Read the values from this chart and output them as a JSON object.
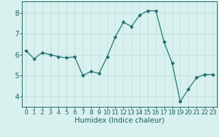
{
  "x": [
    0,
    1,
    2,
    3,
    4,
    5,
    6,
    7,
    8,
    9,
    10,
    11,
    12,
    13,
    14,
    15,
    16,
    17,
    18,
    19,
    20,
    21,
    22,
    23
  ],
  "y": [
    6.2,
    5.8,
    6.1,
    6.0,
    5.9,
    5.85,
    5.9,
    5.0,
    5.2,
    5.1,
    5.9,
    6.85,
    7.55,
    7.35,
    7.9,
    8.1,
    8.1,
    6.6,
    5.6,
    3.75,
    4.35,
    4.9,
    5.05,
    5.05
  ],
  "line_color": "#1a7070",
  "marker": "D",
  "marker_size": 2.5,
  "xlabel": "Humidex (Indice chaleur)",
  "xlim": [
    -0.5,
    23.5
  ],
  "ylim": [
    3.5,
    8.55
  ],
  "yticks": [
    4,
    5,
    6,
    7,
    8
  ],
  "xticks": [
    0,
    1,
    2,
    3,
    4,
    5,
    6,
    7,
    8,
    9,
    10,
    11,
    12,
    13,
    14,
    15,
    16,
    17,
    18,
    19,
    20,
    21,
    22,
    23
  ],
  "bg_color": "#d8f0ee",
  "grid_color": "#c0ddd9",
  "tick_label_color": "#1a6060",
  "axis_color": "#1a6060",
  "xlabel_fontsize": 7.5,
  "tick_fontsize": 6.5,
  "ytick_fontsize": 7.5
}
